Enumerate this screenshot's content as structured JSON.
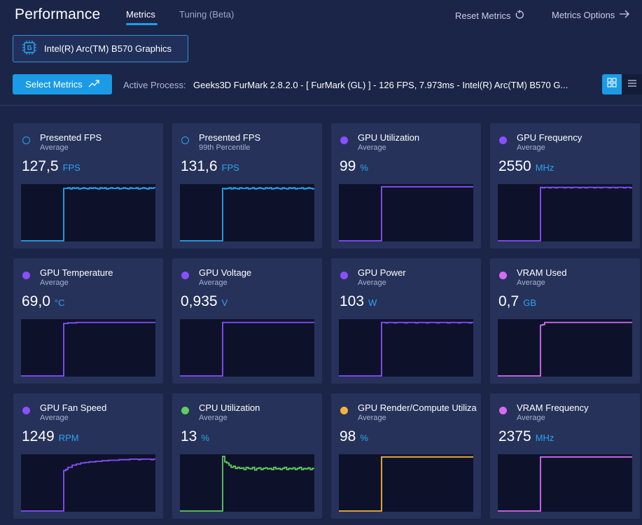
{
  "header": {
    "title": "Performance",
    "tabs": [
      {
        "label": "Metrics",
        "active": true
      },
      {
        "label": "Tuning (Beta)",
        "active": false
      }
    ],
    "reset_label": "Reset Metrics",
    "options_label": "Metrics Options"
  },
  "device": {
    "name": "Intel(R) Arc(TM) B570 Graphics"
  },
  "toolbar": {
    "select_metrics_label": "Select Metrics",
    "active_process_label": "Active Process:",
    "active_process_value": "Geeks3D FurMark 2.8.2.0 - [ FurMark (GL) ] - 126 FPS, 7.973ms - Intel(R) Arc(TM) B570 G..."
  },
  "colors": {
    "accent": "#1b9be6",
    "fps": "#2aa5ef",
    "purple": "#8a4fff",
    "vram": "#d76cf0",
    "cpu": "#5fce5f",
    "render": "#f2b23b"
  },
  "metrics": [
    {
      "name": "Presented FPS",
      "agg": "Average",
      "value": "127,5",
      "unit": "FPS",
      "color": "#2aa5ef",
      "ring": true,
      "series": [
        0,
        0,
        0,
        0,
        0,
        0,
        0,
        0,
        0,
        0,
        0,
        0,
        0,
        0,
        0,
        0,
        0,
        0,
        0,
        0,
        96,
        96,
        97,
        95,
        97,
        96,
        97,
        95,
        96,
        97,
        96,
        95,
        97,
        96,
        97,
        96,
        95,
        97,
        96,
        97,
        95,
        96,
        97,
        96,
        96,
        97,
        95,
        96,
        97,
        96,
        95,
        97,
        96,
        96,
        97,
        95,
        96,
        97,
        96,
        95,
        97,
        96,
        97,
        96
      ]
    },
    {
      "name": "Presented FPS",
      "agg": "99th Percentile",
      "value": "131,6",
      "unit": "FPS",
      "color": "#2aa5ef",
      "ring": true,
      "series": [
        0,
        0,
        0,
        0,
        0,
        0,
        0,
        0,
        0,
        0,
        0,
        0,
        0,
        0,
        0,
        0,
        0,
        0,
        0,
        0,
        96,
        95,
        96,
        97,
        95,
        97,
        96,
        95,
        97,
        96,
        96,
        97,
        95,
        96,
        97,
        95,
        96,
        97,
        96,
        95,
        97,
        96,
        97,
        95,
        96,
        97,
        96,
        95,
        97,
        96,
        95,
        97,
        96,
        97,
        95,
        96,
        96,
        97,
        95,
        96,
        97,
        96,
        95,
        97
      ]
    },
    {
      "name": "GPU Utilization",
      "agg": "Average",
      "value": "99",
      "unit": "%",
      "color": "#8a4fff",
      "ring": false,
      "series": [
        0,
        0,
        0,
        0,
        0,
        0,
        0,
        0,
        0,
        0,
        0,
        0,
        0,
        0,
        0,
        0,
        0,
        0,
        0,
        0,
        99,
        99,
        99,
        99,
        99,
        99,
        99,
        99,
        99,
        99,
        99,
        99,
        99,
        99,
        99,
        99,
        99,
        99,
        99,
        99,
        99,
        99,
        99,
        99,
        99,
        99,
        99,
        99,
        99,
        99,
        99,
        99,
        99,
        99,
        99,
        99,
        99,
        99,
        99,
        99,
        99,
        99,
        99,
        99
      ]
    },
    {
      "name": "GPU Frequency",
      "agg": "Average",
      "value": "2550",
      "unit": "MHz",
      "color": "#8a4fff",
      "ring": false,
      "series": [
        0,
        0,
        0,
        0,
        0,
        0,
        0,
        0,
        0,
        0,
        0,
        0,
        0,
        0,
        0,
        0,
        0,
        0,
        0,
        0,
        98,
        97,
        98,
        98,
        97,
        98,
        98,
        97,
        98,
        98,
        98,
        97,
        98,
        98,
        97,
        98,
        98,
        98,
        97,
        98,
        98,
        97,
        98,
        98,
        98,
        97,
        98,
        98,
        97,
        98,
        98,
        98,
        97,
        98,
        98,
        97,
        98,
        98,
        98,
        97,
        98,
        98,
        97,
        98
      ]
    },
    {
      "name": "GPU Temperature",
      "agg": "Average",
      "value": "69,0",
      "unit": "°C",
      "color": "#8a4fff",
      "ring": false,
      "series": [
        0,
        0,
        0,
        0,
        0,
        0,
        0,
        0,
        0,
        0,
        0,
        0,
        0,
        0,
        0,
        0,
        0,
        0,
        0,
        0,
        96,
        96,
        97,
        97,
        97,
        97,
        98,
        98,
        98,
        98,
        98,
        98,
        98,
        98,
        98,
        98,
        98,
        98,
        98,
        98,
        98,
        98,
        98,
        98,
        98,
        98,
        98,
        98,
        98,
        98,
        98,
        98,
        98,
        98,
        98,
        98,
        98,
        98,
        98,
        98,
        98,
        98,
        98,
        98
      ]
    },
    {
      "name": "GPU Voltage",
      "agg": "Average",
      "value": "0,935",
      "unit": "V",
      "color": "#8a4fff",
      "ring": false,
      "series": [
        0,
        0,
        0,
        0,
        0,
        0,
        0,
        0,
        0,
        0,
        0,
        0,
        0,
        0,
        0,
        0,
        0,
        0,
        0,
        0,
        98,
        98,
        98,
        98,
        98,
        98,
        98,
        98,
        98,
        98,
        98,
        98,
        98,
        98,
        98,
        98,
        98,
        98,
        98,
        98,
        98,
        98,
        98,
        98,
        98,
        98,
        98,
        98,
        98,
        98,
        98,
        98,
        98,
        98,
        98,
        98,
        98,
        98,
        98,
        98,
        98,
        98,
        98,
        98
      ]
    },
    {
      "name": "GPU Power",
      "agg": "Average",
      "value": "103",
      "unit": "W",
      "color": "#8a4fff",
      "ring": false,
      "series": [
        0,
        0,
        0,
        0,
        0,
        0,
        0,
        0,
        0,
        0,
        0,
        0,
        0,
        0,
        0,
        0,
        0,
        0,
        0,
        0,
        98,
        98,
        97,
        98,
        98,
        98,
        97,
        98,
        98,
        98,
        98,
        97,
        98,
        98,
        98,
        98,
        97,
        98,
        98,
        98,
        98,
        97,
        98,
        98,
        98,
        98,
        97,
        98,
        98,
        98,
        98,
        97,
        98,
        98,
        98,
        98,
        97,
        98,
        98,
        98,
        98,
        97,
        98,
        98
      ]
    },
    {
      "name": "VRAM Used",
      "agg": "Average",
      "value": "0,7",
      "unit": "GB",
      "color": "#d76cf0",
      "ring": false,
      "series": [
        0,
        0,
        0,
        0,
        0,
        0,
        0,
        0,
        0,
        0,
        0,
        0,
        0,
        0,
        0,
        0,
        0,
        0,
        0,
        0,
        93,
        94,
        98,
        98,
        98,
        98,
        98,
        98,
        98,
        98,
        98,
        98,
        98,
        98,
        98,
        98,
        98,
        98,
        98,
        98,
        98,
        98,
        98,
        98,
        98,
        98,
        98,
        98,
        98,
        98,
        98,
        98,
        98,
        98,
        98,
        98,
        98,
        98,
        98,
        98,
        98,
        98,
        98,
        98
      ]
    },
    {
      "name": "GPU Fan Speed",
      "agg": "Average",
      "value": "1249",
      "unit": "RPM",
      "color": "#8a4fff",
      "ring": false,
      "series": [
        0,
        0,
        0,
        0,
        0,
        0,
        0,
        0,
        0,
        0,
        0,
        0,
        0,
        0,
        0,
        0,
        0,
        0,
        0,
        0,
        74,
        76,
        80,
        80,
        84,
        84,
        86,
        86,
        88,
        88,
        89,
        89,
        90,
        90,
        90,
        91,
        91,
        91,
        92,
        92,
        92,
        93,
        93,
        93,
        93,
        93,
        94,
        94,
        94,
        94,
        94,
        95,
        95,
        95,
        95,
        94,
        95,
        95,
        95,
        95,
        95,
        94,
        95,
        95
      ]
    },
    {
      "name": "CPU Utilization",
      "agg": "Average",
      "value": "13",
      "unit": "%",
      "color": "#5fce5f",
      "ring": false,
      "series": [
        0,
        0,
        0,
        0,
        0,
        0,
        0,
        0,
        0,
        0,
        0,
        0,
        0,
        0,
        0,
        0,
        0,
        0,
        0,
        0,
        100,
        90,
        88,
        84,
        80,
        82,
        78,
        80,
        78,
        79,
        76,
        80,
        78,
        77,
        80,
        75,
        78,
        79,
        76,
        78,
        79,
        77,
        78,
        76,
        80,
        77,
        78,
        76,
        78,
        80,
        76,
        78,
        77,
        79,
        76,
        78,
        80,
        76,
        78,
        77,
        79,
        76,
        78,
        77
      ]
    },
    {
      "name": "GPU Render/Compute Utilization",
      "agg": "Average",
      "value": "98",
      "unit": "%",
      "color": "#f2b23b",
      "ring": false,
      "series": [
        0,
        0,
        0,
        0,
        0,
        0,
        0,
        0,
        0,
        0,
        0,
        0,
        0,
        0,
        0,
        0,
        0,
        0,
        0,
        0,
        99,
        99,
        99,
        99,
        99,
        99,
        99,
        99,
        99,
        99,
        99,
        99,
        99,
        99,
        99,
        99,
        99,
        99,
        99,
        99,
        99,
        99,
        99,
        99,
        99,
        99,
        99,
        99,
        99,
        99,
        99,
        99,
        99,
        99,
        99,
        99,
        99,
        99,
        99,
        99,
        99,
        99,
        99,
        99
      ]
    },
    {
      "name": "VRAM Frequency",
      "agg": "Average",
      "value": "2375",
      "unit": "MHz",
      "color": "#d76cf0",
      "ring": false,
      "series": [
        0,
        0,
        0,
        0,
        0,
        0,
        0,
        0,
        0,
        0,
        0,
        0,
        0,
        0,
        0,
        0,
        0,
        0,
        0,
        0,
        99,
        99,
        99,
        99,
        99,
        99,
        99,
        99,
        99,
        99,
        99,
        99,
        99,
        99,
        99,
        99,
        99,
        99,
        99,
        99,
        99,
        99,
        99,
        99,
        99,
        99,
        99,
        99,
        99,
        99,
        99,
        99,
        99,
        99,
        99,
        99,
        99,
        99,
        99,
        99,
        99,
        99,
        99,
        99
      ]
    }
  ]
}
